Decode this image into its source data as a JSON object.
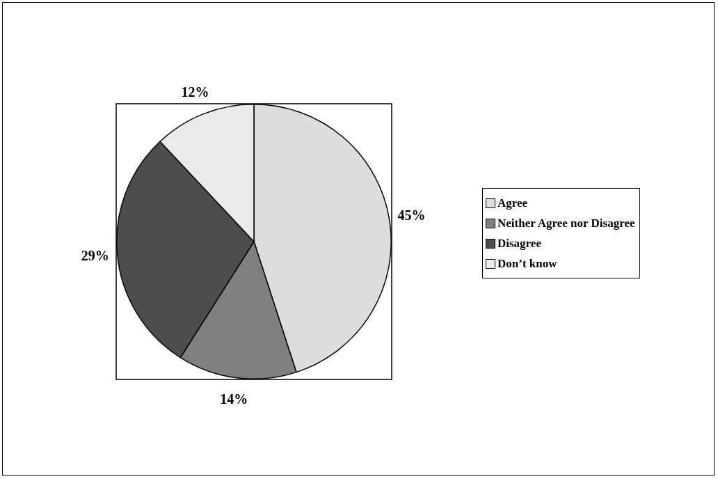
{
  "chart_data": {
    "type": "pie",
    "categories": [
      "Agree",
      "Neither Agree nor Disagree",
      "Disagree",
      "Don’t know"
    ],
    "values": [
      45,
      14,
      29,
      12
    ],
    "colors": [
      "#dddddd",
      "#808080",
      "#4d4d4d",
      "#eaeaea"
    ],
    "value_labels": [
      "45%",
      "14%",
      "29%",
      "12%"
    ],
    "legend": "right"
  }
}
